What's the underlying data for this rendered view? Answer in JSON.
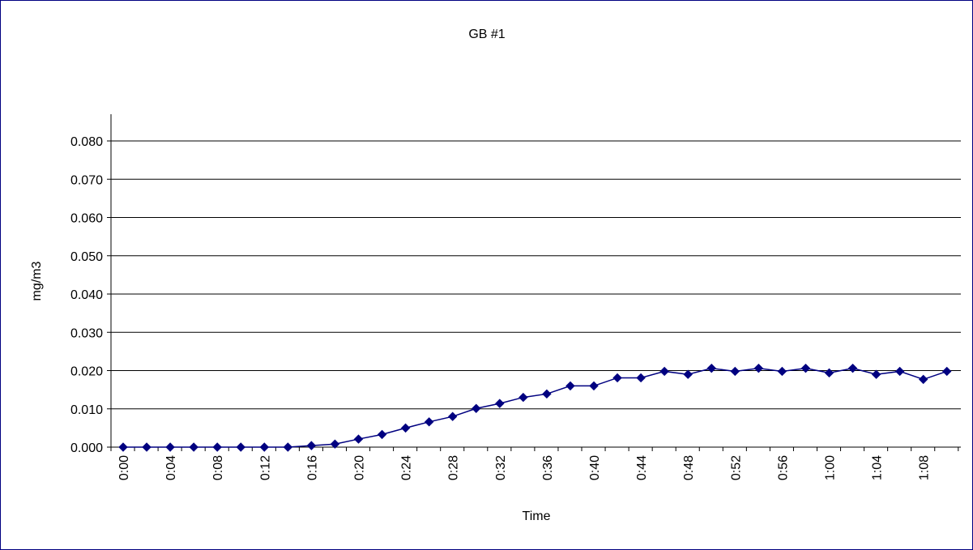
{
  "chart_data": {
    "type": "line",
    "title": "GB #1",
    "xlabel": "Time",
    "ylabel": "mg/m3",
    "ylim": [
      0,
      0.08
    ],
    "y_ticks": [
      "0.000",
      "0.010",
      "0.020",
      "0.030",
      "0.040",
      "0.050",
      "0.060",
      "0.070",
      "0.080"
    ],
    "x": [
      "0:00",
      "0:02",
      "0:04",
      "0:06",
      "0:08",
      "0:10",
      "0:12",
      "0:14",
      "0:16",
      "0:18",
      "0:20",
      "0:22",
      "0:24",
      "0:26",
      "0:28",
      "0:30",
      "0:32",
      "0:34",
      "0:36",
      "0:38",
      "0:40",
      "0:42",
      "0:44",
      "0:46",
      "0:48",
      "0:50",
      "0:52",
      "0:54",
      "0:56",
      "0:58",
      "1:00",
      "1:02",
      "1:04",
      "1:06",
      "1:08",
      "1:10"
    ],
    "x_tick_labels": [
      "0:00",
      "0:04",
      "0:08",
      "0:12",
      "0:16",
      "0:20",
      "0:24",
      "0:28",
      "0:32",
      "0:36",
      "0:40",
      "0:44",
      "0:48",
      "0:52",
      "0:56",
      "1:00",
      "1:04",
      "1:08"
    ],
    "series": [
      {
        "values": [
          0,
          0,
          0,
          0,
          0,
          0,
          0,
          0,
          0.0004,
          0.0008,
          0.0021,
          0.0033,
          0.005,
          0.0066,
          0.008,
          0.0101,
          0.0114,
          0.013,
          0.0139,
          0.016,
          0.016,
          0.0181,
          0.0181,
          0.0198,
          0.019,
          0.0206,
          0.0198,
          0.0206,
          0.0198,
          0.0206,
          0.0194,
          0.0206,
          0.019,
          0.0198,
          0.0177,
          0.0198
        ],
        "color": "#000080",
        "marker": "diamond"
      }
    ],
    "grid": true,
    "legend": "none"
  }
}
